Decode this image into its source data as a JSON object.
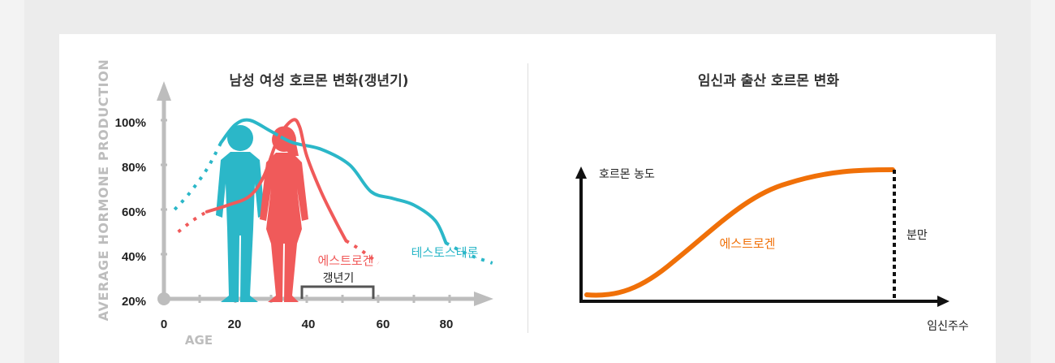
{
  "chart_data": [
    {
      "type": "line",
      "title": "남성 여성 호르몬 변화(갱년기)",
      "ylabel": "AVERAGE HORMONE PRODUCTION",
      "xlabel": "AGE",
      "x_ticks": [
        "0",
        "20",
        "40",
        "60",
        "80"
      ],
      "y_ticks": [
        "20%",
        "40%",
        "60%",
        "80%",
        "100%"
      ],
      "xlim": [
        0,
        90
      ],
      "ylim": [
        20,
        100
      ],
      "series": [
        {
          "name": "테스토스테론",
          "color": "#2bb7c8",
          "x": [
            3,
            7,
            12,
            16,
            20,
            24,
            30,
            36,
            44,
            52,
            58,
            64,
            70,
            76,
            79,
            85,
            92
          ],
          "y": [
            60,
            67,
            78,
            90,
            98,
            100,
            95,
            90,
            87,
            80,
            68,
            65,
            62,
            55,
            45,
            40,
            36
          ],
          "dotted_x": [
            [
              3,
              16
            ],
            [
              79,
              92
            ]
          ]
        },
        {
          "name": "에스트로겐",
          "color": "#f05a5a",
          "x": [
            4,
            8,
            12,
            18,
            24,
            28,
            32,
            36,
            38,
            40,
            44,
            48,
            51,
            55,
            60
          ],
          "y": [
            50,
            55,
            59,
            62,
            66,
            75,
            92,
            100,
            97,
            84,
            68,
            55,
            46,
            42,
            36
          ],
          "dotted_x": [
            [
              4,
              12
            ],
            [
              51,
              60
            ]
          ]
        }
      ],
      "annotations": [
        {
          "text": "갱년기",
          "x_range": [
            38,
            58
          ]
        }
      ]
    },
    {
      "type": "line",
      "title": "임신과 출산 호르몬 변화",
      "ylabel": "호르몬 농도",
      "xlabel": "임신주수",
      "series": [
        {
          "name": "에스트로겐",
          "color": "#f07008"
        }
      ],
      "annotations": [
        {
          "text": "분만"
        }
      ]
    }
  ]
}
